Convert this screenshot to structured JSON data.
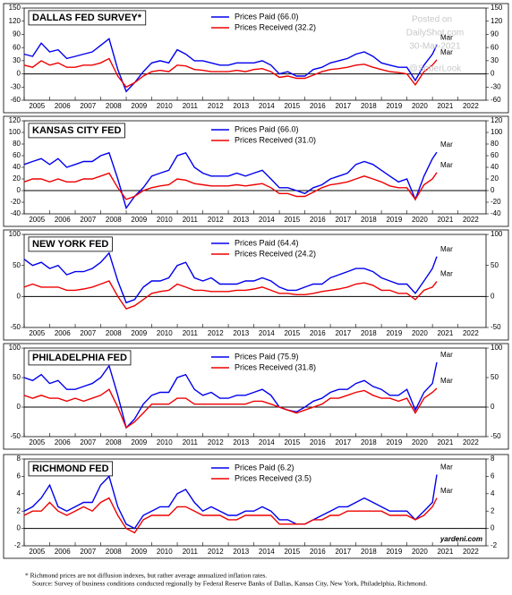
{
  "chart_data": [
    {
      "type": "line",
      "title": "DALLAS FED SURVEY*",
      "x": [
        2005,
        2005.33,
        2005.67,
        2006,
        2006.33,
        2006.67,
        2007,
        2007.33,
        2007.67,
        2008,
        2008.33,
        2008.67,
        2009,
        2009.33,
        2009.67,
        2010,
        2010.33,
        2010.67,
        2011,
        2011.33,
        2011.67,
        2012,
        2012.33,
        2012.67,
        2013,
        2013.33,
        2013.67,
        2014,
        2014.33,
        2014.67,
        2015,
        2015.33,
        2015.67,
        2016,
        2016.33,
        2016.67,
        2017,
        2017.33,
        2017.67,
        2018,
        2018.33,
        2018.67,
        2019,
        2019.33,
        2019.67,
        2020,
        2020.33,
        2020.67,
        2021,
        2021.17
      ],
      "xlim": [
        2005,
        2023.1
      ],
      "xticks": [
        2005,
        2006,
        2007,
        2008,
        2009,
        2010,
        2011,
        2012,
        2013,
        2014,
        2015,
        2016,
        2017,
        2018,
        2019,
        2020,
        2021,
        2022
      ],
      "ylim": [
        -60,
        150
      ],
      "yticks": [
        -60,
        -30,
        0,
        30,
        60,
        90,
        120,
        150
      ],
      "series": [
        {
          "name": "Prices Paid (66.0)",
          "color": "#0000ee",
          "end_label": "Mar",
          "values": [
            45,
            40,
            70,
            50,
            55,
            35,
            40,
            45,
            50,
            65,
            80,
            10,
            -40,
            -20,
            5,
            25,
            30,
            25,
            55,
            45,
            30,
            30,
            25,
            20,
            20,
            25,
            25,
            25,
            30,
            20,
            0,
            5,
            -5,
            -5,
            10,
            15,
            25,
            30,
            35,
            45,
            50,
            40,
            25,
            20,
            15,
            15,
            -15,
            20,
            45,
            66.0
          ]
        },
        {
          "name": "Prices Received (32.2)",
          "color": "#ee0000",
          "end_label": "Mar",
          "values": [
            20,
            15,
            30,
            20,
            25,
            15,
            15,
            20,
            20,
            25,
            35,
            -5,
            -30,
            -20,
            -5,
            5,
            8,
            5,
            20,
            18,
            10,
            8,
            5,
            5,
            5,
            8,
            5,
            10,
            12,
            5,
            -8,
            -5,
            -10,
            -10,
            -3,
            5,
            10,
            12,
            15,
            20,
            22,
            15,
            10,
            5,
            3,
            0,
            -25,
            5,
            20,
            32.2
          ]
        }
      ]
    },
    {
      "type": "line",
      "title": "KANSAS CITY FED",
      "x": [
        2005,
        2005.33,
        2005.67,
        2006,
        2006.33,
        2006.67,
        2007,
        2007.33,
        2007.67,
        2008,
        2008.33,
        2008.67,
        2009,
        2009.33,
        2009.67,
        2010,
        2010.33,
        2010.67,
        2011,
        2011.33,
        2011.67,
        2012,
        2012.33,
        2012.67,
        2013,
        2013.33,
        2013.67,
        2014,
        2014.33,
        2014.67,
        2015,
        2015.33,
        2015.67,
        2016,
        2016.33,
        2016.67,
        2017,
        2017.33,
        2017.67,
        2018,
        2018.33,
        2018.67,
        2019,
        2019.33,
        2019.67,
        2020,
        2020.33,
        2020.67,
        2021,
        2021.17
      ],
      "xlim": [
        2005,
        2023.1
      ],
      "xticks": [
        2005,
        2006,
        2007,
        2008,
        2009,
        2010,
        2011,
        2012,
        2013,
        2014,
        2015,
        2016,
        2017,
        2018,
        2019,
        2020,
        2021,
        2022
      ],
      "ylim": [
        -40,
        120
      ],
      "yticks": [
        -40,
        -20,
        0,
        20,
        40,
        60,
        80,
        100,
        120
      ],
      "series": [
        {
          "name": "Prices Paid (66.0)",
          "color": "#0000ee",
          "end_label": "Mar",
          "values": [
            45,
            50,
            55,
            45,
            55,
            40,
            45,
            50,
            50,
            60,
            65,
            20,
            -30,
            -10,
            5,
            25,
            30,
            35,
            60,
            65,
            40,
            30,
            25,
            25,
            25,
            30,
            25,
            30,
            35,
            20,
            5,
            5,
            0,
            -5,
            5,
            10,
            20,
            25,
            30,
            45,
            50,
            45,
            35,
            25,
            15,
            20,
            -15,
            25,
            55,
            66.0
          ]
        },
        {
          "name": "Prices Received (31.0)",
          "color": "#ee0000",
          "end_label": "Mar",
          "values": [
            15,
            20,
            20,
            15,
            20,
            15,
            15,
            20,
            20,
            25,
            30,
            5,
            -15,
            -10,
            0,
            5,
            8,
            10,
            20,
            18,
            12,
            10,
            8,
            8,
            8,
            10,
            8,
            10,
            12,
            5,
            -5,
            -5,
            -10,
            -10,
            -3,
            5,
            10,
            12,
            15,
            20,
            25,
            20,
            15,
            8,
            5,
            5,
            -15,
            10,
            20,
            31.0
          ]
        }
      ]
    },
    {
      "type": "line",
      "title": "NEW YORK FED",
      "x": [
        2005,
        2005.33,
        2005.67,
        2006,
        2006.33,
        2006.67,
        2007,
        2007.33,
        2007.67,
        2008,
        2008.33,
        2008.67,
        2009,
        2009.33,
        2009.67,
        2010,
        2010.33,
        2010.67,
        2011,
        2011.33,
        2011.67,
        2012,
        2012.33,
        2012.67,
        2013,
        2013.33,
        2013.67,
        2014,
        2014.33,
        2014.67,
        2015,
        2015.33,
        2015.67,
        2016,
        2016.33,
        2016.67,
        2017,
        2017.33,
        2017.67,
        2018,
        2018.33,
        2018.67,
        2019,
        2019.33,
        2019.67,
        2020,
        2020.33,
        2020.67,
        2021,
        2021.17
      ],
      "xlim": [
        2005,
        2023.1
      ],
      "xticks": [
        2005,
        2006,
        2007,
        2008,
        2009,
        2010,
        2011,
        2012,
        2013,
        2014,
        2015,
        2016,
        2017,
        2018,
        2019,
        2020,
        2021,
        2022
      ],
      "ylim": [
        -50,
        100
      ],
      "yticks": [
        -50,
        0,
        50,
        100
      ],
      "series": [
        {
          "name": "Prices Paid (64.4)",
          "color": "#0000ee",
          "end_label": "Mar",
          "values": [
            60,
            50,
            55,
            45,
            50,
            35,
            40,
            40,
            45,
            55,
            70,
            25,
            -10,
            -5,
            15,
            25,
            25,
            30,
            50,
            55,
            30,
            25,
            30,
            20,
            20,
            20,
            25,
            25,
            30,
            25,
            15,
            10,
            10,
            15,
            20,
            20,
            30,
            35,
            40,
            45,
            45,
            40,
            30,
            25,
            20,
            20,
            5,
            25,
            45,
            64.4
          ]
        },
        {
          "name": "Prices Received (24.2)",
          "color": "#ee0000",
          "end_label": "Mar",
          "values": [
            15,
            20,
            15,
            15,
            15,
            10,
            10,
            12,
            15,
            20,
            25,
            0,
            -20,
            -15,
            -5,
            5,
            8,
            10,
            20,
            15,
            10,
            10,
            8,
            8,
            8,
            10,
            10,
            12,
            15,
            10,
            5,
            5,
            3,
            3,
            5,
            8,
            10,
            12,
            15,
            20,
            22,
            18,
            10,
            10,
            5,
            5,
            -5,
            10,
            15,
            24.2
          ]
        }
      ]
    },
    {
      "type": "line",
      "title": "PHILADELPHIA FED",
      "x": [
        2005,
        2005.33,
        2005.67,
        2006,
        2006.33,
        2006.67,
        2007,
        2007.33,
        2007.67,
        2008,
        2008.33,
        2008.67,
        2009,
        2009.33,
        2009.67,
        2010,
        2010.33,
        2010.67,
        2011,
        2011.33,
        2011.67,
        2012,
        2012.33,
        2012.67,
        2013,
        2013.33,
        2013.67,
        2014,
        2014.33,
        2014.67,
        2015,
        2015.33,
        2015.67,
        2016,
        2016.33,
        2016.67,
        2017,
        2017.33,
        2017.67,
        2018,
        2018.33,
        2018.67,
        2019,
        2019.33,
        2019.67,
        2020,
        2020.33,
        2020.67,
        2021,
        2021.17
      ],
      "xlim": [
        2005,
        2023.1
      ],
      "xticks": [
        2005,
        2006,
        2007,
        2008,
        2009,
        2010,
        2011,
        2012,
        2013,
        2014,
        2015,
        2016,
        2017,
        2018,
        2019,
        2020,
        2021,
        2022
      ],
      "ylim": [
        -50,
        100
      ],
      "yticks": [
        -50,
        0,
        50,
        100
      ],
      "series": [
        {
          "name": "Prices Paid (75.9)",
          "color": "#0000ee",
          "end_label": "Mar",
          "values": [
            50,
            45,
            55,
            40,
            45,
            30,
            30,
            35,
            40,
            50,
            70,
            20,
            -35,
            -20,
            5,
            20,
            25,
            25,
            50,
            55,
            30,
            20,
            25,
            15,
            15,
            20,
            20,
            25,
            30,
            20,
            0,
            -5,
            -8,
            0,
            10,
            15,
            25,
            30,
            30,
            40,
            45,
            35,
            30,
            20,
            20,
            30,
            -5,
            25,
            40,
            75.9
          ]
        },
        {
          "name": "Prices Received (31.8)",
          "color": "#ee0000",
          "end_label": "Mar",
          "values": [
            20,
            15,
            20,
            15,
            15,
            10,
            15,
            10,
            15,
            20,
            30,
            0,
            -35,
            -25,
            -10,
            5,
            5,
            5,
            15,
            15,
            5,
            5,
            5,
            5,
            5,
            5,
            5,
            10,
            10,
            5,
            0,
            -5,
            -10,
            -5,
            0,
            5,
            15,
            15,
            20,
            25,
            28,
            20,
            15,
            15,
            10,
            15,
            -10,
            15,
            25,
            31.8
          ]
        }
      ]
    },
    {
      "type": "line",
      "title": "RICHMOND FED",
      "annotation": "yardeni.com",
      "x": [
        2005,
        2005.33,
        2005.67,
        2006,
        2006.33,
        2006.67,
        2007,
        2007.33,
        2007.67,
        2008,
        2008.33,
        2008.67,
        2009,
        2009.33,
        2009.67,
        2010,
        2010.33,
        2010.67,
        2011,
        2011.33,
        2011.67,
        2012,
        2012.33,
        2012.67,
        2013,
        2013.33,
        2013.67,
        2014,
        2014.33,
        2014.67,
        2015,
        2015.33,
        2015.67,
        2016,
        2016.33,
        2016.67,
        2017,
        2017.33,
        2017.67,
        2018,
        2018.33,
        2018.67,
        2019,
        2019.33,
        2019.67,
        2020,
        2020.33,
        2020.67,
        2021,
        2021.17
      ],
      "xlim": [
        2005,
        2023.1
      ],
      "xticks": [
        2005,
        2006,
        2007,
        2008,
        2009,
        2010,
        2011,
        2012,
        2013,
        2014,
        2015,
        2016,
        2017,
        2018,
        2019,
        2020,
        2021,
        2022
      ],
      "ylim": [
        -2,
        8
      ],
      "yticks": [
        -2,
        0,
        2,
        4,
        6,
        8
      ],
      "series": [
        {
          "name": "Prices Paid (6.2)",
          "color": "#0000ee",
          "end_label": "Mar",
          "values": [
            2,
            2.5,
            3.5,
            5,
            2.5,
            2,
            2.5,
            3,
            3,
            5,
            6,
            2.5,
            0.5,
            0,
            1.5,
            2,
            2.5,
            2.5,
            4,
            4.5,
            3,
            2,
            2.5,
            2,
            1.5,
            1.5,
            2,
            2,
            2.5,
            2,
            1,
            1,
            0.5,
            0.5,
            1,
            1.5,
            2,
            2.5,
            2.5,
            3,
            3.5,
            3,
            2.5,
            2,
            2,
            2,
            1,
            2,
            3,
            6.2
          ]
        },
        {
          "name": "Prices Received (3.5)",
          "color": "#ee0000",
          "end_label": "Mar",
          "values": [
            1.5,
            2,
            2,
            3,
            2,
            1.5,
            2,
            2.5,
            2,
            3,
            3.5,
            1.5,
            0,
            -0.5,
            1,
            1.5,
            1.5,
            1.5,
            2.5,
            2.5,
            2,
            1.5,
            1.5,
            1.5,
            1,
            1,
            1.5,
            1.5,
            1.5,
            1.5,
            0.5,
            0.5,
            0.5,
            0.5,
            1,
            1,
            1.5,
            1.5,
            2,
            2,
            2,
            2,
            2,
            1.5,
            1.5,
            1.5,
            1,
            1.5,
            2.5,
            3.5
          ]
        }
      ]
    }
  ],
  "watermark": [
    "Posted on",
    "DailyShot.com",
    "30-Mar-2021",
    "@SoberLook"
  ],
  "footnote": "* Richmond prices are not diffusion indexes, but rather average annualized inflation rates.",
  "source": "Source: Survey of business conditions conducted regionally by Federal Reserve Banks of Dallas, Kansas City, New York, Philadelphia, Richmond."
}
